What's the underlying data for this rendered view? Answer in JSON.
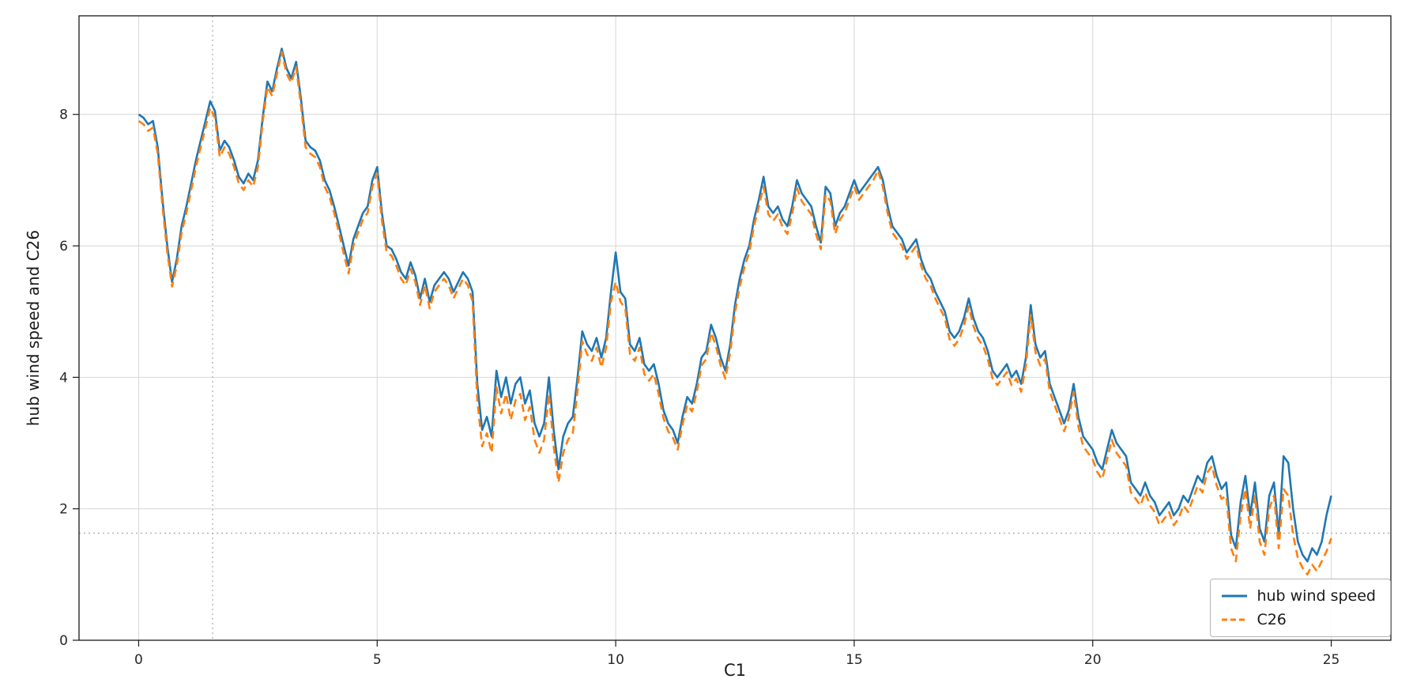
{
  "chart_data": {
    "type": "line",
    "title": "",
    "xlabel": "C1",
    "ylabel": "hub wind speed and C26",
    "xlim": [
      -1.25,
      26.25
    ],
    "ylim": [
      0,
      9.5
    ],
    "xticks": [
      0,
      5,
      10,
      15,
      20,
      25
    ],
    "yticks": [
      0,
      2,
      4,
      6,
      8
    ],
    "grid": true,
    "legend_position": "lower right",
    "crosshair": {
      "x": 1.55,
      "y": 1.63
    },
    "x_start": 0,
    "x_step": 0.1,
    "series": [
      {
        "name": "hub wind speed",
        "color": "#1f77b4",
        "style": "solid",
        "values": [
          8.0,
          7.95,
          7.85,
          7.9,
          7.5,
          6.7,
          6.0,
          5.45,
          5.8,
          6.3,
          6.6,
          6.95,
          7.3,
          7.6,
          7.9,
          8.2,
          8.05,
          7.45,
          7.6,
          7.5,
          7.3,
          7.05,
          6.95,
          7.1,
          7.0,
          7.3,
          7.95,
          8.5,
          8.35,
          8.7,
          9.0,
          8.7,
          8.55,
          8.8,
          8.25,
          7.6,
          7.5,
          7.45,
          7.3,
          7.0,
          6.85,
          6.6,
          6.3,
          6.0,
          5.7,
          6.1,
          6.3,
          6.5,
          6.6,
          7.0,
          7.2,
          6.5,
          6.0,
          5.95,
          5.8,
          5.6,
          5.5,
          5.75,
          5.55,
          5.2,
          5.5,
          5.15,
          5.4,
          5.5,
          5.6,
          5.5,
          5.3,
          5.45,
          5.6,
          5.5,
          5.3,
          3.9,
          3.2,
          3.4,
          3.1,
          4.1,
          3.7,
          4.0,
          3.6,
          3.9,
          4.0,
          3.6,
          3.8,
          3.3,
          3.1,
          3.3,
          4.0,
          3.2,
          2.6,
          3.1,
          3.3,
          3.4,
          4.0,
          4.7,
          4.5,
          4.4,
          4.6,
          4.3,
          4.6,
          5.3,
          5.9,
          5.3,
          5.2,
          4.5,
          4.4,
          4.6,
          4.2,
          4.1,
          4.2,
          3.9,
          3.5,
          3.3,
          3.2,
          3.0,
          3.4,
          3.7,
          3.6,
          3.9,
          4.3,
          4.4,
          4.8,
          4.6,
          4.3,
          4.1,
          4.5,
          5.1,
          5.5,
          5.8,
          6.0,
          6.4,
          6.7,
          7.05,
          6.6,
          6.5,
          6.6,
          6.4,
          6.3,
          6.6,
          7.0,
          6.8,
          6.7,
          6.6,
          6.3,
          6.05,
          6.9,
          6.8,
          6.3,
          6.5,
          6.6,
          6.8,
          7.0,
          6.8,
          6.9,
          7.0,
          7.1,
          7.2,
          7.0,
          6.6,
          6.3,
          6.2,
          6.1,
          5.9,
          6.0,
          6.1,
          5.8,
          5.6,
          5.5,
          5.3,
          5.15,
          5.0,
          4.7,
          4.6,
          4.7,
          4.9,
          5.2,
          4.9,
          4.7,
          4.6,
          4.4,
          4.1,
          4.0,
          4.1,
          4.2,
          4.0,
          4.1,
          3.9,
          4.3,
          5.1,
          4.5,
          4.3,
          4.4,
          3.9,
          3.7,
          3.5,
          3.3,
          3.5,
          3.9,
          3.4,
          3.1,
          3.0,
          2.9,
          2.7,
          2.6,
          2.9,
          3.2,
          3.0,
          2.9,
          2.8,
          2.4,
          2.3,
          2.2,
          2.4,
          2.2,
          2.1,
          1.9,
          2.0,
          2.1,
          1.9,
          2.0,
          2.2,
          2.1,
          2.3,
          2.5,
          2.4,
          2.7,
          2.8,
          2.5,
          2.3,
          2.4,
          1.6,
          1.4,
          2.1,
          2.5,
          1.9,
          2.4,
          1.7,
          1.5,
          2.2,
          2.4,
          1.6,
          2.8,
          2.7,
          2.0,
          1.5,
          1.3,
          1.2,
          1.4,
          1.3,
          1.5,
          1.9,
          2.2
        ]
      },
      {
        "name": "C26",
        "color": "#ff7f0e",
        "style": "dashed",
        "values": [
          7.9,
          7.85,
          7.75,
          7.8,
          7.4,
          6.6,
          5.9,
          5.38,
          5.7,
          6.2,
          6.5,
          6.85,
          7.2,
          7.5,
          7.8,
          8.1,
          7.95,
          7.35,
          7.5,
          7.4,
          7.2,
          6.95,
          6.85,
          7.0,
          6.9,
          7.2,
          7.88,
          8.42,
          8.28,
          8.62,
          8.95,
          8.62,
          8.48,
          8.72,
          8.15,
          7.5,
          7.4,
          7.35,
          7.2,
          6.9,
          6.75,
          6.5,
          6.2,
          5.88,
          5.58,
          6.0,
          6.2,
          6.4,
          6.5,
          6.9,
          7.1,
          6.38,
          5.9,
          5.85,
          5.7,
          5.5,
          5.4,
          5.65,
          5.45,
          5.1,
          5.4,
          5.05,
          5.3,
          5.4,
          5.5,
          5.4,
          5.2,
          5.35,
          5.5,
          5.4,
          5.15,
          3.65,
          2.95,
          3.15,
          2.85,
          3.85,
          3.45,
          3.75,
          3.35,
          3.65,
          3.75,
          3.35,
          3.55,
          3.05,
          2.85,
          3.05,
          3.75,
          2.95,
          2.4,
          2.85,
          3.05,
          3.15,
          3.8,
          4.55,
          4.35,
          4.25,
          4.45,
          4.15,
          4.45,
          5.15,
          5.45,
          5.15,
          5.05,
          4.35,
          4.25,
          4.45,
          4.05,
          3.95,
          4.05,
          3.75,
          3.38,
          3.18,
          3.08,
          2.9,
          3.28,
          3.58,
          3.48,
          3.78,
          4.18,
          4.28,
          4.68,
          4.48,
          4.18,
          3.98,
          4.38,
          4.98,
          5.38,
          5.68,
          5.9,
          6.3,
          6.6,
          6.9,
          6.48,
          6.38,
          6.48,
          6.28,
          6.18,
          6.48,
          6.88,
          6.68,
          6.58,
          6.48,
          6.18,
          5.95,
          6.78,
          6.68,
          6.18,
          6.4,
          6.5,
          6.7,
          6.9,
          6.7,
          6.8,
          6.9,
          7.0,
          7.15,
          6.9,
          6.5,
          6.2,
          6.1,
          6.0,
          5.8,
          5.9,
          6.0,
          5.7,
          5.5,
          5.4,
          5.2,
          5.05,
          4.9,
          4.58,
          4.48,
          4.58,
          4.78,
          5.08,
          4.78,
          4.58,
          4.48,
          4.28,
          3.98,
          3.88,
          3.98,
          4.08,
          3.88,
          3.98,
          3.78,
          4.18,
          4.95,
          4.38,
          4.18,
          4.28,
          3.78,
          3.58,
          3.38,
          3.18,
          3.38,
          3.78,
          3.25,
          2.95,
          2.85,
          2.75,
          2.55,
          2.45,
          2.75,
          3.05,
          2.85,
          2.75,
          2.65,
          2.25,
          2.15,
          2.05,
          2.25,
          2.05,
          1.95,
          1.75,
          1.85,
          1.95,
          1.75,
          1.85,
          2.05,
          1.95,
          2.15,
          2.35,
          2.25,
          2.55,
          2.65,
          2.35,
          2.15,
          2.2,
          1.4,
          1.2,
          1.9,
          2.3,
          1.7,
          2.2,
          1.5,
          1.3,
          2.0,
          2.2,
          1.4,
          2.3,
          2.2,
          1.6,
          1.25,
          1.1,
          1.0,
          1.15,
          1.05,
          1.2,
          1.35,
          1.55
        ]
      }
    ]
  },
  "colors": {
    "series_blue": "#1f77b4",
    "series_orange": "#ff7f0e",
    "grid": "#d9d9d9",
    "axis": "#1a1a1a",
    "background": "#ffffff"
  }
}
